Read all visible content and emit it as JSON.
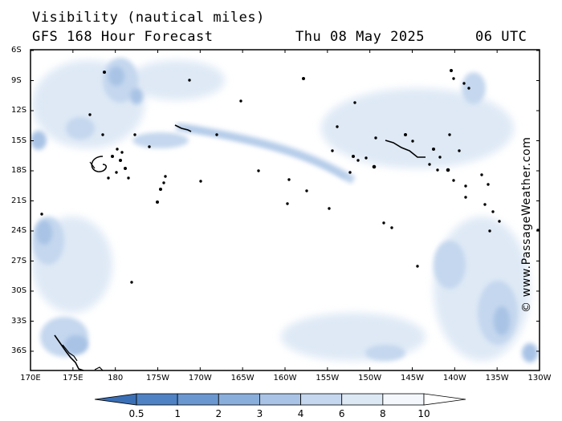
{
  "header": {
    "title": "Visibility (nautical miles)",
    "model": "GFS 168 Hour Forecast",
    "date": "Thu 08 May 2025",
    "time": "06 UTC"
  },
  "credit": "© www.PassageWeather.com",
  "map": {
    "lat_ticks": [
      "6S",
      "9S",
      "12S",
      "15S",
      "18S",
      "21S",
      "24S",
      "27S",
      "30S",
      "33S",
      "36S"
    ],
    "lon_ticks": [
      "170E",
      "175E",
      "180",
      "175W",
      "170W",
      "165W",
      "160W",
      "155W",
      "150W",
      "145W",
      "140W",
      "135W",
      "130W"
    ],
    "lat_range": [
      -6,
      -38.5
    ],
    "lon_range": [
      170,
      230
    ]
  },
  "legend": {
    "labels": [
      "0.5",
      "1",
      "2",
      "3",
      "4",
      "6",
      "8",
      "10"
    ],
    "colors": [
      "#3a6fb6",
      "#4e82c4",
      "#6a97d0",
      "#8aaedb",
      "#a8c3e5",
      "#c4d7ee",
      "#dde8f5",
      "#f4f8fc",
      "#ffffff"
    ]
  }
}
